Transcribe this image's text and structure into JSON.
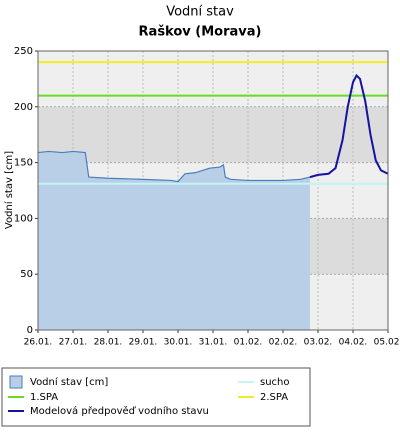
{
  "chart_data": {
    "type": "line",
    "title": "Vodní stav",
    "subtitle": "Raškov (Morava)",
    "y_label": "Vodní stav [cm]",
    "xlim": [
      0,
      10
    ],
    "xticks": [
      {
        "value": 0,
        "label": "26.01."
      },
      {
        "value": 1,
        "label": "27.01."
      },
      {
        "value": 2,
        "label": "28.01."
      },
      {
        "value": 3,
        "label": "29.01."
      },
      {
        "value": 4,
        "label": "30.01."
      },
      {
        "value": 5,
        "label": "31.01."
      },
      {
        "value": 6,
        "label": "01.02."
      },
      {
        "value": 7,
        "label": "02.02."
      },
      {
        "value": 8,
        "label": "03.02."
      },
      {
        "value": 9,
        "label": "04.02."
      },
      {
        "value": 10,
        "label": "05.02."
      }
    ],
    "ylim": [
      0,
      250
    ],
    "yticks": [
      0,
      50,
      100,
      150,
      200,
      250
    ],
    "grid": true,
    "series": [
      {
        "name": "Vodní stav [cm]",
        "color": "#4a7ebb",
        "fill": "#b9cfe7",
        "area": true,
        "x": [
          0,
          0.3,
          0.7,
          1.0,
          1.35,
          1.45,
          2.0,
          3.0,
          3.8,
          4.0,
          4.2,
          4.5,
          4.9,
          5.2,
          5.3,
          5.35,
          5.5,
          6.0,
          7.0,
          7.5,
          7.77
        ],
        "values": [
          159,
          160,
          159,
          160,
          159,
          137,
          136,
          135,
          134,
          133,
          140,
          141,
          145,
          146,
          148,
          137,
          135,
          134,
          134,
          135,
          137
        ]
      },
      {
        "name": "Modelová předpověď vodního stavu",
        "color": "#1414a0",
        "area": false,
        "x": [
          7.77,
          8.0,
          8.3,
          8.5,
          8.7,
          8.85,
          9.0,
          9.1,
          9.2,
          9.35,
          9.5,
          9.65,
          9.8,
          10.0
        ],
        "values": [
          137,
          139,
          140,
          145,
          170,
          200,
          222,
          228,
          225,
          205,
          175,
          152,
          143,
          140
        ]
      }
    ],
    "hlines": [
      {
        "name": "sucho",
        "color": "#c4f4f4",
        "value": 131
      },
      {
        "name": "1.SPA",
        "color": "#66dd22",
        "value": 210
      },
      {
        "name": "2.SPA",
        "color": "#f0f020",
        "value": 240
      }
    ]
  }
}
